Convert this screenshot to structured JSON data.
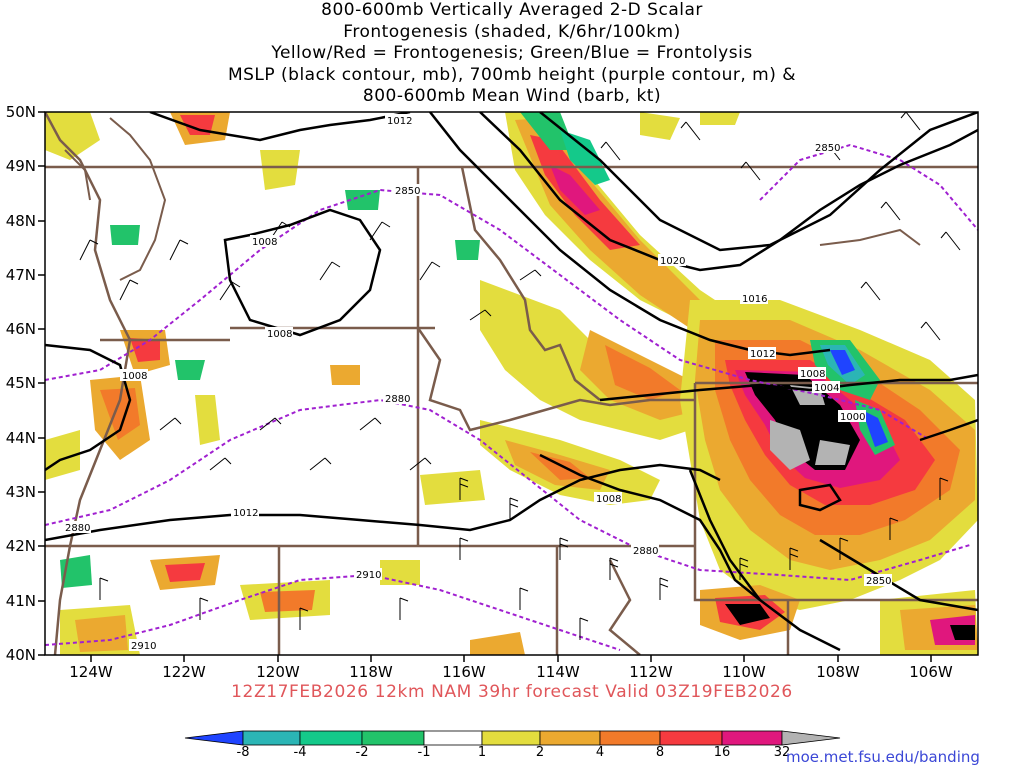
{
  "title": {
    "lines": [
      "800-600mb Vertically Averaged 2-D Scalar",
      "Frontogenesis (shaded, K/6hr/100km)",
      "Yellow/Red = Frontogenesis;  Green/Blue = Frontolysis",
      "MSLP (black contour, mb), 700mb height (purple contour, m) &",
      "800-600mb Mean Wind (barb, kt)"
    ]
  },
  "map": {
    "lat_labels": [
      "50N",
      "49N",
      "48N",
      "47N",
      "46N",
      "45N",
      "44N",
      "43N",
      "42N",
      "41N",
      "40N"
    ],
    "lon_labels": [
      "124W",
      "122W",
      "120W",
      "118W",
      "116W",
      "114W",
      "112W",
      "110W",
      "108W",
      "106W"
    ],
    "lat_range": [
      40,
      50
    ],
    "lon_range": [
      -125,
      -105
    ],
    "mslp_labels": [
      "1012",
      "1008",
      "1008",
      "1008",
      "1020",
      "1016",
      "1012",
      "1008",
      "1004",
      "1000",
      "1008",
      "1012"
    ],
    "height_labels": [
      "2850",
      "2850",
      "2880",
      "2880",
      "2880",
      "2910",
      "2910",
      "2850"
    ]
  },
  "forecast_text": "12Z17FEB2026 12km NAM 39hr forecast Valid 03Z19FEB2026",
  "colorbar": {
    "labels": [
      "-8",
      "-4",
      "-2",
      "-1",
      "1",
      "2",
      "4",
      "8",
      "16",
      "32"
    ],
    "colors": [
      "#1f44ff",
      "#2bb5b5",
      "#14c98a",
      "#22c36a",
      "#33d11a",
      "#ffffff",
      "#e3dd3e",
      "#eba930",
      "#f27a2a",
      "#f53a3f",
      "#e0177d",
      "#000000",
      "#b3b3b3"
    ]
  },
  "credit": "moe.met.fsu.edu/banding",
  "colors": {
    "border": "#7a5c4c",
    "mslp": "#000000",
    "height": "#a020d0",
    "forecast": "#e0565a",
    "credit": "#3b47d6"
  }
}
